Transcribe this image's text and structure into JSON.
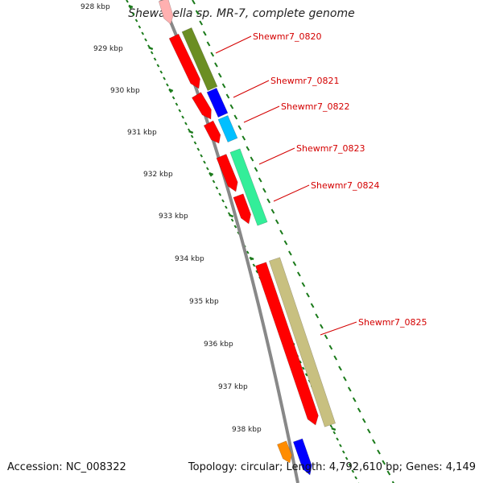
{
  "header": {
    "title": "Shewanella sp. MR-7, complete genome"
  },
  "footer": {
    "accession": "Accession: NC_008322",
    "summary": "Topology: circular; Length: 4,792,610 bp; Genes: 4,149"
  },
  "scale": {
    "ticks": [
      "928 kbp",
      "929 kbp",
      "930 kbp",
      "931 kbp",
      "932 kbp",
      "933 kbp",
      "934 kbp",
      "935 kbp",
      "936 kbp",
      "937 kbp",
      "938 kbp"
    ]
  },
  "colors": {
    "backbone": "#888888",
    "tick": "#1a7a1a",
    "cds": "#ff0000",
    "label": "#d40000"
  },
  "genes": [
    {
      "label": "Shewmr7_0820",
      "color": "#6b8e23"
    },
    {
      "label": "Shewmr7_0821",
      "color": "#0000ff"
    },
    {
      "label": "Shewmr7_0822",
      "color": "#00bfff"
    },
    {
      "label": "Shewmr7_0823",
      "color": "#33ee99"
    },
    {
      "label": "Shewmr7_0824",
      "color": "#33ee99"
    },
    {
      "label": "Shewmr7_0825",
      "color": "#c8c080"
    }
  ]
}
